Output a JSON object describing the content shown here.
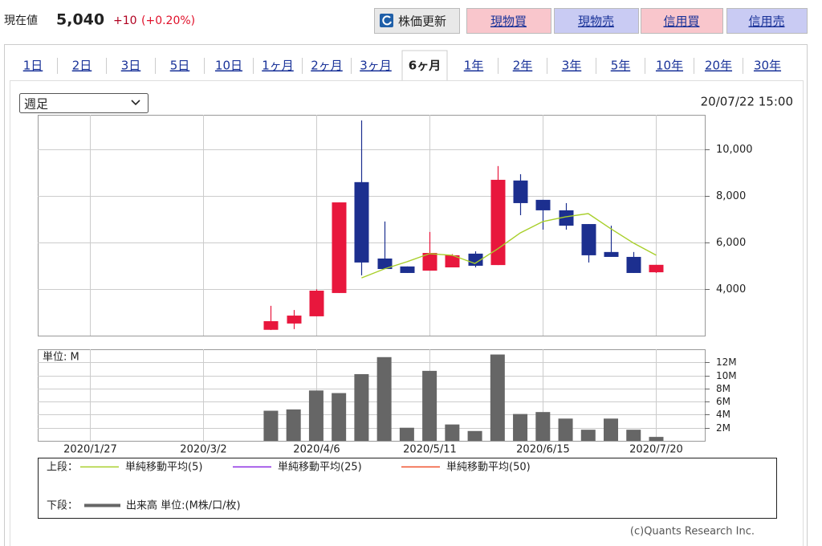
{
  "header": {
    "label": "現在値",
    "price": "5,040",
    "change": "+10",
    "change_pct": "(+0.20%)"
  },
  "buttons": [
    "株価更新",
    "現物買",
    "現物売",
    "信用買",
    "信用売"
  ],
  "tabs": [
    "1日",
    "2日",
    "3日",
    "5日",
    "10日",
    "1ヶ月",
    "2ヶ月",
    "3ヶ月",
    "6ヶ月",
    "1年",
    "2年",
    "3年",
    "5年",
    "10年",
    "20年",
    "30年"
  ],
  "active_tab": 8,
  "select": "週足",
  "timestamp": "20/07/22 15:00",
  "footer": "(c)Quants Research Inc.",
  "chart_data": [
    {
      "type": "candlestick",
      "x": [
        "2020/3/23",
        "2020/3/30",
        "2020/4/6",
        "2020/4/13",
        "2020/4/20",
        "2020/4/27",
        "2020/5/4",
        "2020/5/11",
        "2020/5/18",
        "2020/5/25",
        "2020/6/1",
        "2020/6/8",
        "2020/6/15",
        "2020/6/22",
        "2020/6/29",
        "2020/7/6",
        "2020/7/13",
        "2020/7/20"
      ],
      "open": [
        2250,
        2520,
        2830,
        3830,
        8590,
        5310,
        4970,
        4790,
        4930,
        5520,
        5030,
        8660,
        7830,
        7380,
        6790,
        5590,
        5380,
        4720
      ],
      "high": [
        3280,
        3100,
        3990,
        7720,
        11240,
        6900,
        4970,
        6450,
        5500,
        5620,
        9280,
        8930,
        7830,
        7690,
        6790,
        6720,
        5590,
        5040
      ],
      "low": [
        2240,
        2280,
        2830,
        3830,
        4590,
        4860,
        4690,
        4790,
        4930,
        4930,
        5030,
        7170,
        6550,
        6550,
        5140,
        5380,
        4690,
        4690
      ],
      "close": [
        2620,
        2860,
        3930,
        7720,
        5140,
        4860,
        4690,
        5550,
        5450,
        5000,
        8690,
        7690,
        7380,
        6720,
        5450,
        5380,
        4690,
        5040
      ],
      "up_color": "#e8173d",
      "down_color": "#1c2f8f",
      "series": [
        {
          "name": "単純移動平均(5)",
          "color": "#a8cf2a",
          "values": [
            null,
            null,
            null,
            null,
            4480,
            4860,
            5170,
            5520,
            5450,
            5100,
            5720,
            6410,
            6900,
            7100,
            7240,
            6590,
            5970,
            5450
          ]
        },
        {
          "name": "単純移動平均(25)",
          "color": "#8a2be2",
          "values": [
            null,
            null,
            null,
            null,
            null,
            null,
            null,
            null,
            null,
            null,
            null,
            null,
            null,
            null,
            null,
            null,
            null,
            null
          ]
        },
        {
          "name": "単純移動平均(50)",
          "color": "#f0502a",
          "values": [
            null,
            null,
            null,
            null,
            null,
            null,
            null,
            null,
            null,
            null,
            null,
            null,
            null,
            null,
            null,
            null,
            null,
            null
          ]
        }
      ],
      "legend_title": "上段：",
      "xlim": [
        "2020/1/11",
        "2020/8/4"
      ],
      "ylim": [
        2000,
        11480
      ],
      "yticks": [
        {
          "value": 4000,
          "label": "4,000"
        },
        {
          "value": 6000,
          "label": "6,000"
        },
        {
          "value": 8000,
          "label": "8,000"
        },
        {
          "value": 10000,
          "label": "10,000"
        }
      ],
      "grid": true
    },
    {
      "type": "bar",
      "x": [
        "2020/3/23",
        "2020/3/30",
        "2020/4/6",
        "2020/4/13",
        "2020/4/20",
        "2020/4/27",
        "2020/5/4",
        "2020/5/11",
        "2020/5/18",
        "2020/5/25",
        "2020/6/1",
        "2020/6/8",
        "2020/6/15",
        "2020/6/22",
        "2020/6/29",
        "2020/7/6",
        "2020/7/13",
        "2020/7/20"
      ],
      "unit_label": "単位: M",
      "series": [
        {
          "name": "出来高 単位:(M株/口/枚)",
          "color": "#666666",
          "values": [
            4.6,
            4.8,
            7.7,
            7.3,
            10.2,
            12.8,
            2.0,
            10.7,
            2.5,
            1.5,
            13.2,
            4.1,
            4.4,
            3.4,
            1.7,
            3.4,
            1.7,
            0.6
          ]
        }
      ],
      "legend_title": "下段：",
      "xlim": [
        "2020/1/11",
        "2020/8/4"
      ],
      "xticks": [
        "2020/1/27",
        "2020/3/2",
        "2020/4/6",
        "2020/5/11",
        "2020/6/15",
        "2020/7/20"
      ],
      "ylim": [
        0,
        14
      ],
      "yticks": [
        {
          "value": 2,
          "label": "2M"
        },
        {
          "value": 4,
          "label": "4M"
        },
        {
          "value": 6,
          "label": "6M"
        },
        {
          "value": 8,
          "label": "8M"
        },
        {
          "value": 10,
          "label": "10M"
        },
        {
          "value": 12,
          "label": "12M"
        }
      ],
      "grid": true
    }
  ]
}
